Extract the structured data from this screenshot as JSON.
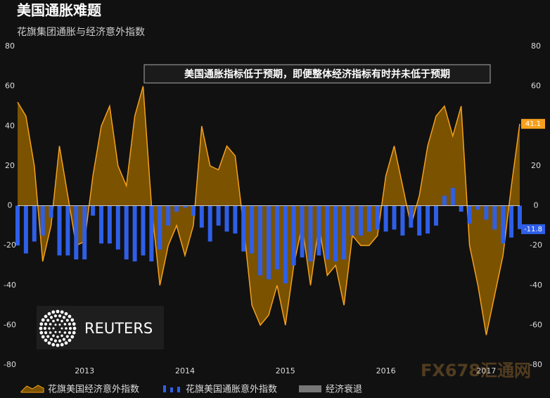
{
  "chart_data": {
    "type": "area_bar",
    "title": "美国通胀难题",
    "subtitle": "花旗集团通胀与经济意外指数",
    "annotation": "美国通胀指标低于预期，即便整体经济指标有时并未低于预期",
    "logo": "REUTERS",
    "watermark": "FX678汇通网",
    "categories": [
      null,
      null,
      null,
      null,
      null,
      null,
      null,
      null,
      "2013",
      null,
      null,
      null,
      null,
      null,
      null,
      null,
      null,
      null,
      null,
      null,
      "2014",
      null,
      null,
      null,
      null,
      null,
      null,
      null,
      null,
      null,
      null,
      null,
      "2015",
      null,
      null,
      null,
      null,
      null,
      null,
      null,
      null,
      null,
      null,
      null,
      "2016",
      null,
      null,
      null,
      null,
      null,
      null,
      null,
      null,
      null,
      null,
      null,
      "2017",
      null,
      null,
      null,
      null
    ],
    "series": [
      {
        "name": "花旗美国经济意外指数",
        "color": "#f5a01e",
        "kind": "area",
        "values": [
          52,
          45,
          20,
          -28,
          -10,
          30,
          5,
          -20,
          -18,
          15,
          40,
          50,
          20,
          10,
          45,
          60,
          0,
          -40,
          -20,
          -10,
          -25,
          -10,
          40,
          20,
          18,
          30,
          25,
          -10,
          -50,
          -60,
          -55,
          -40,
          -60,
          -30,
          -10,
          -40,
          -10,
          -35,
          -30,
          -50,
          -15,
          -20,
          -20,
          -15,
          15,
          30,
          10,
          -10,
          5,
          30,
          45,
          50,
          35,
          50,
          -20,
          -40,
          -65,
          -45,
          -25,
          10,
          41.1
        ]
      },
      {
        "name": "花旗美国通胀意外指数",
        "color": "#2f5fe8",
        "kind": "bar",
        "values": [
          -20,
          -24,
          -18,
          -15,
          -6,
          -25,
          -25,
          -27,
          -27,
          -5,
          -19,
          -19,
          -22,
          -27,
          -28,
          -25,
          -28,
          -22,
          -10,
          -3,
          -1,
          -5,
          -11,
          -18,
          -10,
          -13,
          -14,
          -23,
          -24,
          -35,
          -37,
          -32,
          -39,
          -30,
          -26,
          -28,
          -25,
          -27,
          -28,
          -27,
          -15,
          -15,
          -13,
          -12,
          -13,
          -12,
          -15,
          -11,
          -15,
          -14,
          -10,
          5,
          9,
          -3,
          -9,
          -2,
          -7,
          -12,
          -19,
          -16,
          -11.8
        ]
      }
    ],
    "recession": {
      "name": "经济衰退",
      "color": "#777777"
    },
    "ylim": [
      -80,
      80
    ],
    "yticks": [
      -80,
      -60,
      -40,
      -20,
      0,
      20,
      40,
      60,
      80
    ],
    "grid": false
  }
}
